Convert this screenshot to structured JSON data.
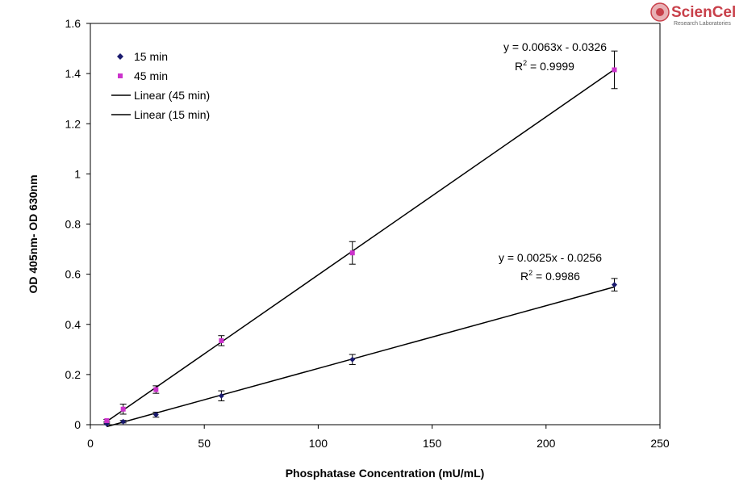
{
  "logo": {
    "name": "ScienCell",
    "subtitle": "Research Laboratories"
  },
  "chart_data": {
    "type": "scatter",
    "title": "",
    "xlabel": "Phosphatase Concentration (mU/mL)",
    "ylabel": "OD 405nm- OD 630nm",
    "xlim": [
      0,
      250
    ],
    "ylim": [
      0,
      1.6
    ],
    "x_ticks": [
      0,
      50,
      100,
      150,
      200,
      250
    ],
    "y_ticks": [
      0,
      0.2,
      0.4,
      0.6,
      0.8,
      1,
      1.2,
      1.4,
      1.6
    ],
    "x_tick_labels": [
      "0",
      "50",
      "100",
      "150",
      "200",
      "250"
    ],
    "y_tick_labels": [
      "0",
      "0.2",
      "0.4",
      "0.6",
      "0.8",
      "1",
      "1.2",
      "1.4",
      "1.6"
    ],
    "grid": false,
    "legend_position": "top-left",
    "series": [
      {
        "name": "15 min",
        "marker": "diamond",
        "color": "#1a1a6e",
        "x": [
          7.2,
          14.4,
          28.8,
          57.5,
          115,
          230
        ],
        "y": [
          0.003,
          0.012,
          0.04,
          0.115,
          0.26,
          0.558
        ],
        "err": [
          0.003,
          0.005,
          0.01,
          0.02,
          0.02,
          0.025
        ]
      },
      {
        "name": "45 min",
        "marker": "square",
        "color": "#cc33cc",
        "x": [
          7.2,
          14.4,
          28.8,
          57.5,
          115,
          230
        ],
        "y": [
          0.016,
          0.062,
          0.14,
          0.335,
          0.685,
          1.415
        ],
        "err": [
          0.005,
          0.02,
          0.015,
          0.02,
          0.045,
          0.075
        ]
      }
    ],
    "trendlines": [
      {
        "name": "Linear (45 min)",
        "slope": 0.0063,
        "intercept": -0.0326,
        "x_range": [
          7.2,
          230
        ],
        "equation": "y = 0.0063x - 0.0326",
        "r2_label": "R",
        "r2_sup": "2",
        "r2_value": " = 0.9999"
      },
      {
        "name": "Linear (15 min)",
        "slope": 0.0025,
        "intercept": -0.0256,
        "x_range": [
          7.2,
          230
        ],
        "equation": "y = 0.0025x - 0.0256",
        "r2_label": "R",
        "r2_sup": "2",
        "r2_value": " = 0.9986"
      }
    ]
  }
}
